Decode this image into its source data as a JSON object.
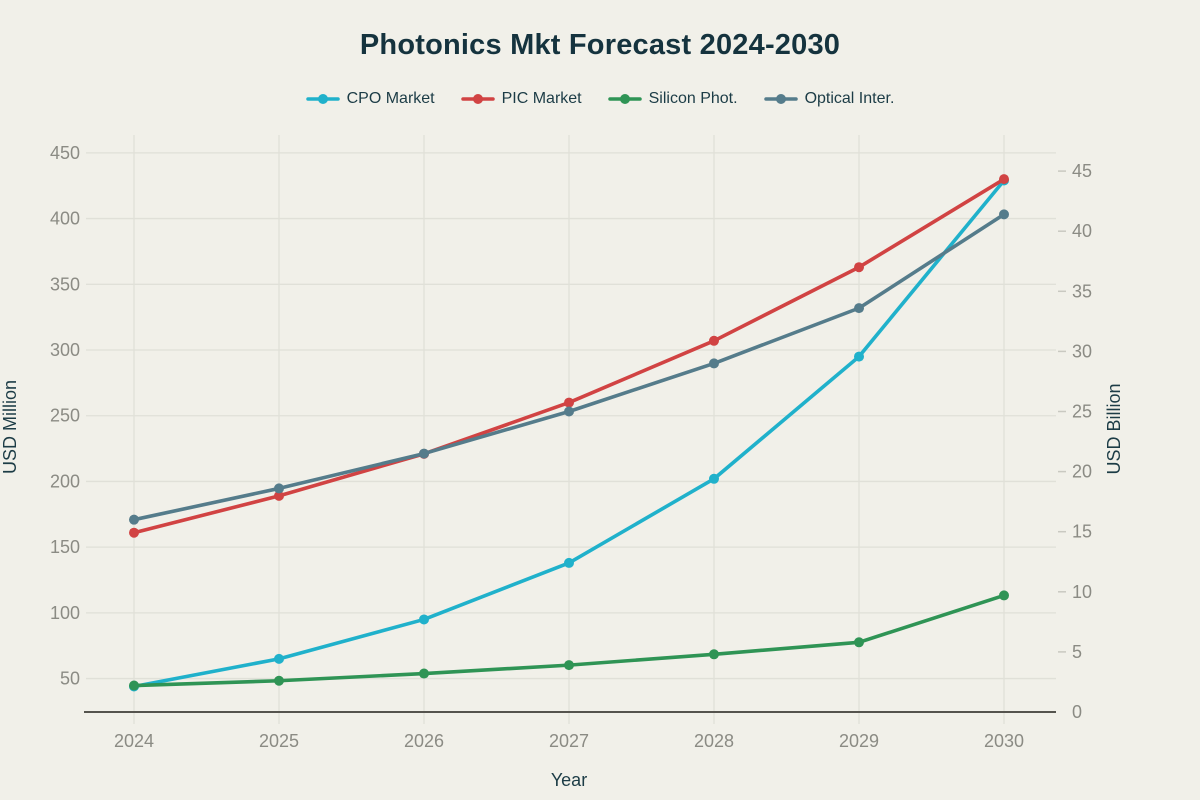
{
  "chart_data": {
    "type": "line",
    "title": "Photonics Mkt Forecast 2024-2030",
    "xlabel": "Year",
    "ylabel_left": "USD Million",
    "ylabel_right": "USD Billion",
    "x": [
      2024,
      2025,
      2026,
      2027,
      2028,
      2029,
      2030
    ],
    "yticks_left": [
      50,
      100,
      150,
      200,
      250,
      300,
      350,
      400,
      450
    ],
    "yticks_right": [
      0,
      5,
      10,
      15,
      20,
      25,
      30,
      35,
      40,
      45
    ],
    "ylim_left": [
      25,
      463
    ],
    "ylim_right": [
      0,
      48
    ],
    "grid": true,
    "legend_position": "top",
    "series": [
      {
        "name": "CPO Market",
        "axis": "left",
        "unit": "USD Million",
        "color": "#20B1CB",
        "values": [
          44,
          65,
          95,
          138,
          202,
          295,
          429
        ]
      },
      {
        "name": "PIC Market",
        "axis": "left",
        "unit": "USD Million",
        "color": "#D14343",
        "values": [
          161,
          189,
          221,
          260,
          307,
          363,
          430
        ]
      },
      {
        "name": "Silicon Phot.",
        "axis": "right",
        "unit": "USD Billion",
        "color": "#2F9455",
        "values": [
          2.2,
          2.6,
          3.2,
          3.9,
          4.8,
          5.8,
          9.7
        ]
      },
      {
        "name": "Optical Inter.",
        "axis": "right",
        "unit": "USD Billion",
        "color": "#557C8B",
        "values": [
          16,
          18.6,
          21.5,
          25,
          29,
          33.6,
          41.4
        ]
      }
    ],
    "colors": {
      "background": "#F1F0E9",
      "grid": "#E0E0D8",
      "axis_line": "#55544E",
      "tick_label": "#8B8B84",
      "text": "#1C3C46",
      "title": "#15333E"
    }
  }
}
